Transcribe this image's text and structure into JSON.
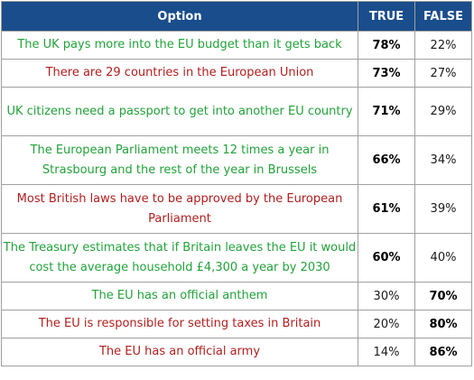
{
  "headers": {
    "option": "Option",
    "true": "TRUE",
    "false": "FALSE"
  },
  "colors": {
    "header_bg": "#1a4d8c",
    "true_statement_text": "#22a23a",
    "false_statement_text": "#b01e1e",
    "border": "#a0a0a0"
  },
  "rows": [
    {
      "option": "The UK pays more into the EU budget than it gets back",
      "true": "78%",
      "false": "22%",
      "statement_color": "green",
      "bold": "true"
    },
    {
      "option": "There are 29 countries in the European Union",
      "true": "73%",
      "false": "27%",
      "statement_color": "red",
      "bold": "true"
    },
    {
      "option": "UK citizens need a passport to get into another EU country",
      "true": "71%",
      "false": "29%",
      "statement_color": "green",
      "bold": "true"
    },
    {
      "option": "The European Parliament meets 12 times a year in Strasbourg and the rest of the year in Brussels",
      "true": "66%",
      "false": "34%",
      "statement_color": "green",
      "bold": "true"
    },
    {
      "option": "Most British laws have to be approved by the European Parliament",
      "true": "61%",
      "false": "39%",
      "statement_color": "red",
      "bold": "true"
    },
    {
      "option": "The Treasury estimates that if Britain leaves the EU it would cost the average household £4,300 a year by 2030",
      "true": "60%",
      "false": "40%",
      "statement_color": "green",
      "bold": "true"
    },
    {
      "option": "The EU has an official anthem",
      "true": "30%",
      "false": "70%",
      "statement_color": "green",
      "bold": "false"
    },
    {
      "option": "The EU is responsible for setting taxes in Britain",
      "true": "20%",
      "false": "80%",
      "statement_color": "red",
      "bold": "false"
    },
    {
      "option": "The EU has an official army",
      "true": "14%",
      "false": "86%",
      "statement_color": "red",
      "bold": "false"
    }
  ]
}
